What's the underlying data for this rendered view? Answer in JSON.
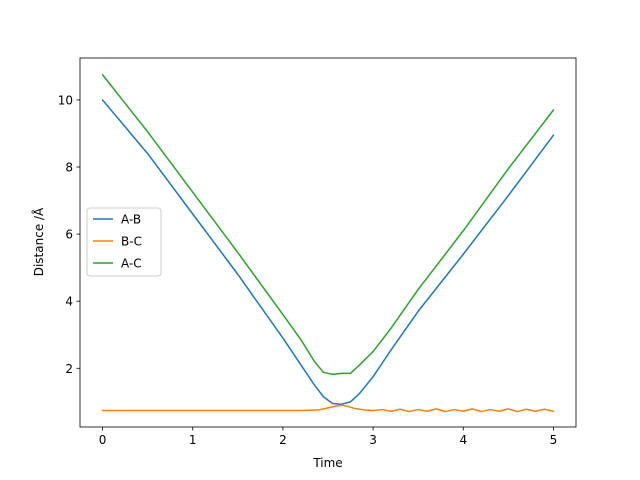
{
  "chart_data": {
    "type": "line",
    "title": "",
    "xlabel": "Time",
    "ylabel": "Distance /Å",
    "xlim": [
      -0.25,
      5.25
    ],
    "ylim": [
      0.25,
      11.25
    ],
    "xticks": [
      0,
      1,
      2,
      3,
      4,
      5
    ],
    "yticks": [
      2,
      4,
      6,
      8,
      10
    ],
    "grid": false,
    "legend_position": "center-left",
    "series": [
      {
        "name": "A-B",
        "color": "#1f77b4",
        "x": [
          0,
          0.5,
          1.0,
          1.5,
          2.0,
          2.2,
          2.35,
          2.45,
          2.55,
          2.65,
          2.75,
          2.85,
          3.0,
          3.2,
          3.5,
          4.0,
          4.5,
          5.0
        ],
        "y": [
          10.0,
          8.4,
          6.6,
          4.8,
          2.9,
          2.1,
          1.5,
          1.15,
          0.95,
          0.93,
          1.0,
          1.25,
          1.75,
          2.55,
          3.7,
          5.4,
          7.15,
          8.95
        ]
      },
      {
        "name": "B-C",
        "color": "#ff7f0e",
        "x": [
          0,
          0.5,
          1.0,
          1.5,
          2.0,
          2.2,
          2.4,
          2.5,
          2.6,
          2.65,
          2.7,
          2.8,
          2.9,
          3.0,
          3.1,
          3.2,
          3.3,
          3.4,
          3.5,
          3.6,
          3.7,
          3.8,
          3.9,
          4.0,
          4.1,
          4.2,
          4.3,
          4.4,
          4.5,
          4.6,
          4.7,
          4.8,
          4.9,
          5.0
        ],
        "y": [
          0.74,
          0.74,
          0.74,
          0.74,
          0.74,
          0.74,
          0.76,
          0.82,
          0.88,
          0.9,
          0.88,
          0.8,
          0.76,
          0.74,
          0.77,
          0.72,
          0.78,
          0.71,
          0.77,
          0.72,
          0.79,
          0.71,
          0.77,
          0.72,
          0.79,
          0.71,
          0.77,
          0.72,
          0.79,
          0.71,
          0.78,
          0.72,
          0.78,
          0.72
        ]
      },
      {
        "name": "A-C",
        "color": "#2ca02c",
        "x": [
          0,
          0.5,
          1.0,
          1.5,
          2.0,
          2.2,
          2.35,
          2.45,
          2.55,
          2.65,
          2.75,
          2.85,
          3.0,
          3.2,
          3.5,
          4.0,
          4.5,
          5.0
        ],
        "y": [
          10.75,
          9.05,
          7.25,
          5.45,
          3.6,
          2.85,
          2.2,
          1.88,
          1.82,
          1.85,
          1.85,
          2.1,
          2.5,
          3.2,
          4.35,
          6.1,
          7.95,
          9.7
        ]
      }
    ]
  }
}
